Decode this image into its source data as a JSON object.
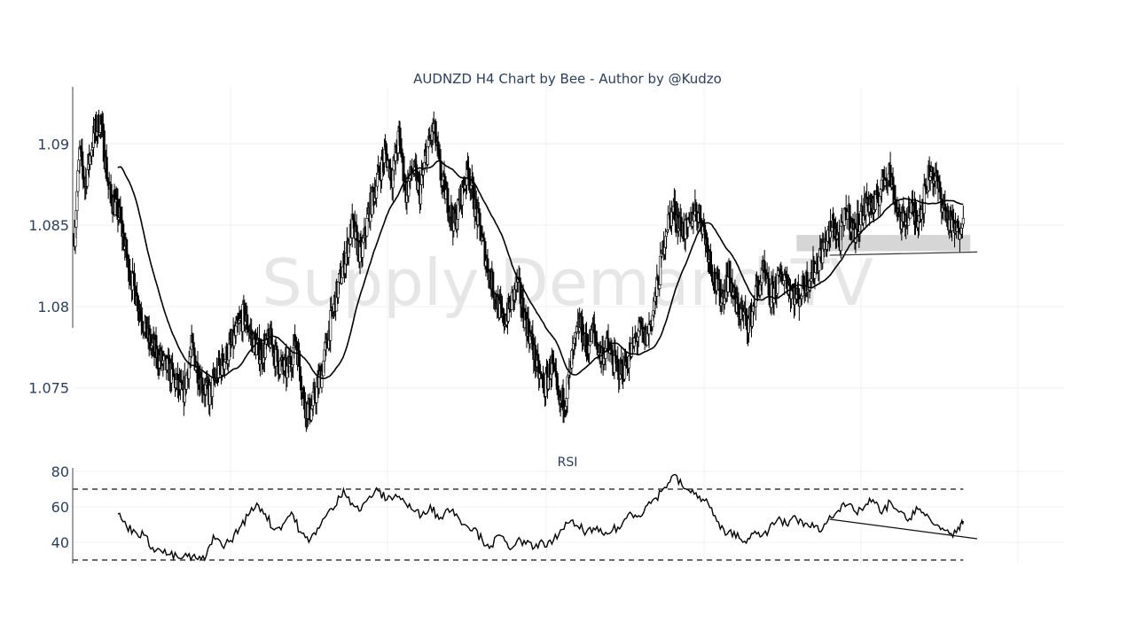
{
  "chart_data": [
    {
      "type": "candlestick",
      "title": "AUDNZD H4 Chart by Bee - Author by @Kudzo",
      "watermark": "Supply Demand TV",
      "ylim": [
        1.0715,
        1.0935
      ],
      "y_ticks": [
        {
          "value": 1.075,
          "label": "1.075"
        },
        {
          "value": 1.08,
          "label": "1.08"
        },
        {
          "value": 1.085,
          "label": "1.085"
        },
        {
          "value": 1.09,
          "label": "1.09"
        }
      ],
      "grid": true,
      "candle_color": "#000000",
      "moving_average_color": "#000000",
      "price_path": [
        [
          0,
          1.0845
        ],
        [
          6,
          1.0895
        ],
        [
          12,
          1.0875
        ],
        [
          22,
          1.0905
        ],
        [
          30,
          1.0915
        ],
        [
          40,
          1.087
        ],
        [
          52,
          1.0855
        ],
        [
          62,
          1.0825
        ],
        [
          72,
          1.0805
        ],
        [
          85,
          1.078
        ],
        [
          95,
          1.077
        ],
        [
          110,
          1.076
        ],
        [
          125,
          1.0745
        ],
        [
          135,
          1.0775
        ],
        [
          145,
          1.0755
        ],
        [
          155,
          1.0745
        ],
        [
          165,
          1.076
        ],
        [
          180,
          1.0775
        ],
        [
          195,
          1.0795
        ],
        [
          205,
          1.078
        ],
        [
          215,
          1.077
        ],
        [
          225,
          1.078
        ],
        [
          235,
          1.0765
        ],
        [
          245,
          1.076
        ],
        [
          255,
          1.078
        ],
        [
          265,
          1.074
        ],
        [
          272,
          1.0735
        ],
        [
          285,
          1.076
        ],
        [
          295,
          1.079
        ],
        [
          303,
          1.081
        ],
        [
          312,
          1.083
        ],
        [
          320,
          1.085
        ],
        [
          330,
          1.083
        ],
        [
          340,
          1.086
        ],
        [
          350,
          1.088
        ],
        [
          358,
          1.0895
        ],
        [
          366,
          1.088
        ],
        [
          374,
          1.0905
        ],
        [
          382,
          1.087
        ],
        [
          390,
          1.0885
        ],
        [
          398,
          1.087
        ],
        [
          406,
          1.0895
        ],
        [
          414,
          1.091
        ],
        [
          422,
          1.088
        ],
        [
          430,
          1.0865
        ],
        [
          438,
          1.085
        ],
        [
          446,
          1.087
        ],
        [
          454,
          1.0885
        ],
        [
          462,
          1.086
        ],
        [
          470,
          1.084
        ],
        [
          478,
          1.082
        ],
        [
          486,
          1.0805
        ],
        [
          494,
          1.079
        ],
        [
          502,
          1.08
        ],
        [
          510,
          1.0815
        ],
        [
          518,
          1.0795
        ],
        [
          526,
          1.078
        ],
        [
          534,
          1.076
        ],
        [
          542,
          1.075
        ],
        [
          550,
          1.0765
        ],
        [
          558,
          1.074
        ],
        [
          566,
          1.0745
        ],
        [
          574,
          1.077
        ],
        [
          582,
          1.079
        ],
        [
          590,
          1.0775
        ],
        [
          598,
          1.0785
        ],
        [
          606,
          1.077
        ],
        [
          614,
          1.0775
        ],
        [
          622,
          1.0765
        ],
        [
          630,
          1.076
        ],
        [
          640,
          1.077
        ],
        [
          650,
          1.0785
        ],
        [
          658,
          1.078
        ],
        [
          666,
          1.0795
        ],
        [
          674,
          1.082
        ],
        [
          682,
          1.085
        ],
        [
          690,
          1.086
        ],
        [
          698,
          1.085
        ],
        [
          706,
          1.0845
        ],
        [
          714,
          1.086
        ],
        [
          722,
          1.0855
        ],
        [
          730,
          1.0835
        ],
        [
          738,
          1.0815
        ],
        [
          746,
          1.0805
        ],
        [
          754,
          1.082
        ],
        [
          762,
          1.08
        ],
        [
          770,
          1.0795
        ],
        [
          778,
          1.079
        ],
        [
          786,
          1.081
        ],
        [
          794,
          1.082
        ],
        [
          802,
          1.0805
        ],
        [
          810,
          1.0815
        ],
        [
          818,
          1.082
        ],
        [
          826,
          1.081
        ],
        [
          834,
          1.0805
        ],
        [
          842,
          1.0815
        ],
        [
          850,
          1.082
        ],
        [
          858,
          1.083
        ],
        [
          866,
          1.084
        ],
        [
          874,
          1.085
        ],
        [
          882,
          1.084
        ],
        [
          890,
          1.086
        ],
        [
          898,
          1.0845
        ],
        [
          906,
          1.0855
        ],
        [
          914,
          1.0865
        ],
        [
          922,
          1.086
        ],
        [
          930,
          1.0875
        ],
        [
          938,
          1.0885
        ],
        [
          946,
          1.0865
        ],
        [
          954,
          1.085
        ],
        [
          962,
          1.086
        ],
        [
          970,
          1.0855
        ],
        [
          978,
          1.0865
        ],
        [
          986,
          1.0885
        ],
        [
          994,
          1.0875
        ],
        [
          1002,
          1.086
        ],
        [
          1010,
          1.085
        ],
        [
          1018,
          1.0845
        ],
        [
          1024,
          1.086
        ]
      ],
      "zones": [
        {
          "from": 832,
          "to": 1032,
          "low": 1.0834,
          "high": 1.0844,
          "color": "#d6d6d6"
        }
      ],
      "trendlines": [
        {
          "from": [
            870,
            1.08315
          ],
          "to": [
            1040,
            1.08335
          ]
        }
      ]
    },
    {
      "type": "line",
      "title": "RSI",
      "ylim": [
        28,
        82
      ],
      "y_ticks": [
        {
          "value": 40,
          "label": "40"
        },
        {
          "value": 60,
          "label": "60"
        },
        {
          "value": 80,
          "label": "80"
        }
      ],
      "levels": [
        70,
        30
      ],
      "line_color": "#000000",
      "series": [
        {
          "values": [
            [
              50,
              56
            ],
            [
              60,
              49
            ],
            [
              70,
              46
            ],
            [
              80,
              44
            ],
            [
              90,
              37
            ],
            [
              100,
              35
            ],
            [
              110,
              33
            ],
            [
              120,
              31
            ],
            [
              130,
              32
            ],
            [
              140,
              31
            ],
            [
              150,
              30
            ],
            [
              160,
              44
            ],
            [
              170,
              38
            ],
            [
              180,
              41
            ],
            [
              190,
              48
            ],
            [
              200,
              55
            ],
            [
              210,
              62
            ],
            [
              220,
              56
            ],
            [
              230,
              47
            ],
            [
              240,
              50
            ],
            [
              250,
              57
            ],
            [
              260,
              46
            ],
            [
              270,
              40
            ],
            [
              280,
              48
            ],
            [
              290,
              55
            ],
            [
              300,
              60
            ],
            [
              310,
              70
            ],
            [
              320,
              62
            ],
            [
              330,
              58
            ],
            [
              340,
              66
            ],
            [
              350,
              69
            ],
            [
              360,
              64
            ],
            [
              370,
              67
            ],
            [
              380,
              63
            ],
            [
              390,
              58
            ],
            [
              400,
              55
            ],
            [
              410,
              61
            ],
            [
              420,
              53
            ],
            [
              430,
              59
            ],
            [
              440,
              56
            ],
            [
              450,
              50
            ],
            [
              460,
              48
            ],
            [
              470,
              41
            ],
            [
              480,
              38
            ],
            [
              490,
              44
            ],
            [
              500,
              37
            ],
            [
              510,
              41
            ],
            [
              520,
              39
            ],
            [
              530,
              37
            ],
            [
              540,
              40
            ],
            [
              550,
              39
            ],
            [
              560,
              47
            ],
            [
              570,
              51
            ],
            [
              580,
              49
            ],
            [
              590,
              46
            ],
            [
              600,
              47
            ],
            [
              610,
              44
            ],
            [
              620,
              47
            ],
            [
              630,
              49
            ],
            [
              640,
              57
            ],
            [
              650,
              55
            ],
            [
              660,
              61
            ],
            [
              670,
              65
            ],
            [
              680,
              71
            ],
            [
              690,
              78
            ],
            [
              700,
              72
            ],
            [
              710,
              68
            ],
            [
              720,
              66
            ],
            [
              730,
              62
            ],
            [
              740,
              52
            ],
            [
              750,
              44
            ],
            [
              760,
              46
            ],
            [
              770,
              40
            ],
            [
              780,
              45
            ],
            [
              790,
              43
            ],
            [
              800,
              47
            ],
            [
              810,
              53
            ],
            [
              820,
              50
            ],
            [
              830,
              55
            ],
            [
              840,
              49
            ],
            [
              850,
              51
            ],
            [
              860,
              46
            ],
            [
              870,
              55
            ],
            [
              880,
              58
            ],
            [
              890,
              61
            ],
            [
              900,
              57
            ],
            [
              910,
              60
            ],
            [
              920,
              64
            ],
            [
              930,
              56
            ],
            [
              940,
              63
            ],
            [
              950,
              57
            ],
            [
              960,
              52
            ],
            [
              970,
              60
            ],
            [
              980,
              55
            ],
            [
              990,
              50
            ],
            [
              1000,
              48
            ],
            [
              1010,
              45
            ],
            [
              1020,
              47
            ],
            [
              1024,
              52
            ]
          ]
        }
      ],
      "trendlines": [
        {
          "from": [
            870,
            53
          ],
          "to": [
            1040,
            42
          ]
        }
      ]
    }
  ]
}
